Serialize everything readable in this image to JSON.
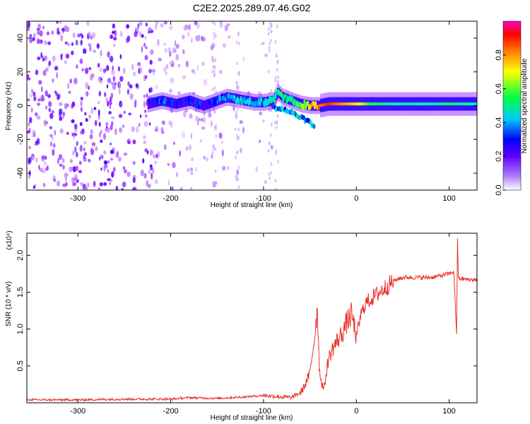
{
  "title": "C2E2.2025.289.07.46.G02",
  "chart_data": [
    {
      "type": "heatmap",
      "title": "C2E2.2025.289.07.46.G02",
      "xlabel": "Height of straight line (km)",
      "ylabel": "Frequency (Hz)",
      "xlim": [
        -355,
        130
      ],
      "ylim": [
        -50,
        50
      ],
      "x_ticks": [
        -300,
        -200,
        -100,
        0,
        100
      ],
      "y_ticks": [
        -40,
        -20,
        0,
        20,
        40
      ],
      "colorbar": {
        "label": "Normalized spectral amplitude",
        "range": [
          0.0,
          1.0
        ],
        "ticks": [
          "0.0",
          "0.2",
          "0.4",
          "0.6",
          "0.8"
        ],
        "colors": [
          "#e8d8ff",
          "#8000ff",
          "#0000ff",
          "#00ffff",
          "#00ff00",
          "#ffff00",
          "#ff8000",
          "#ff0000",
          "#ff00ff"
        ]
      },
      "ridge": {
        "x": [
          -225,
          -210,
          -195,
          -180,
          -165,
          -150,
          -140,
          -130,
          -120,
          -110,
          -100,
          -90,
          -85,
          -80,
          -70,
          -60,
          -50,
          -40,
          -30,
          -20,
          -10,
          0,
          20,
          40,
          60,
          80,
          100,
          120
        ],
        "frequency": [
          1,
          3,
          1,
          3,
          0,
          3,
          5,
          4,
          3,
          2,
          2,
          3,
          8,
          5,
          3,
          1,
          0,
          0,
          1,
          1,
          1,
          1,
          1,
          1,
          1,
          1,
          1,
          1
        ],
        "amplitude": [
          0.25,
          0.35,
          0.3,
          0.3,
          0.3,
          0.35,
          0.4,
          0.45,
          0.45,
          0.4,
          0.4,
          0.5,
          0.55,
          0.55,
          0.5,
          0.6,
          0.75,
          0.85,
          0.9,
          0.85,
          0.8,
          0.75,
          0.55,
          0.5,
          0.5,
          0.5,
          0.55,
          0.5
        ]
      },
      "secondary_branch": {
        "x": [
          -90,
          -80,
          -70,
          -60,
          -50,
          -45
        ],
        "frequency": [
          -1,
          -2,
          -4,
          -7,
          -10,
          -13
        ]
      }
    },
    {
      "type": "line",
      "xlabel": "Height of straight line (km)",
      "ylabel": "SNR (10 * v/v)",
      "exponent_label": "(x10⁴)",
      "xlim": [
        -355,
        130
      ],
      "ylim": [
        0,
        2.3
      ],
      "x_ticks": [
        -300,
        -200,
        -100,
        0,
        100
      ],
      "y_ticks": [
        0.5,
        1.0,
        1.5,
        2.0
      ],
      "color": "#e8302a",
      "series": [
        {
          "x": [
            -355,
            -300,
            -250,
            -200,
            -180,
            -150,
            -120,
            -100,
            -90,
            -80,
            -70,
            -60,
            -55,
            -50,
            -45,
            -42,
            -40,
            -38,
            -35,
            -30,
            -25,
            -20,
            -15,
            -10,
            -5,
            0,
            5,
            10,
            15,
            20,
            25,
            30,
            35,
            40,
            45,
            50,
            60,
            70,
            80,
            90,
            100,
            105,
            108,
            109,
            110,
            112,
            115,
            120,
            130
          ],
          "y": [
            0.04,
            0.04,
            0.05,
            0.05,
            0.07,
            0.06,
            0.08,
            0.1,
            0.09,
            0.08,
            0.07,
            0.14,
            0.25,
            0.4,
            0.9,
            1.3,
            0.5,
            0.3,
            0.18,
            0.6,
            0.75,
            0.85,
            0.95,
            1.1,
            1.2,
            0.9,
            1.2,
            1.35,
            1.4,
            1.45,
            1.5,
            1.55,
            1.6,
            1.65,
            1.68,
            1.7,
            1.7,
            1.7,
            1.7,
            1.72,
            1.75,
            1.78,
            0.95,
            2.2,
            1.7,
            1.68,
            1.68,
            1.67,
            1.67
          ]
        }
      ]
    }
  ]
}
